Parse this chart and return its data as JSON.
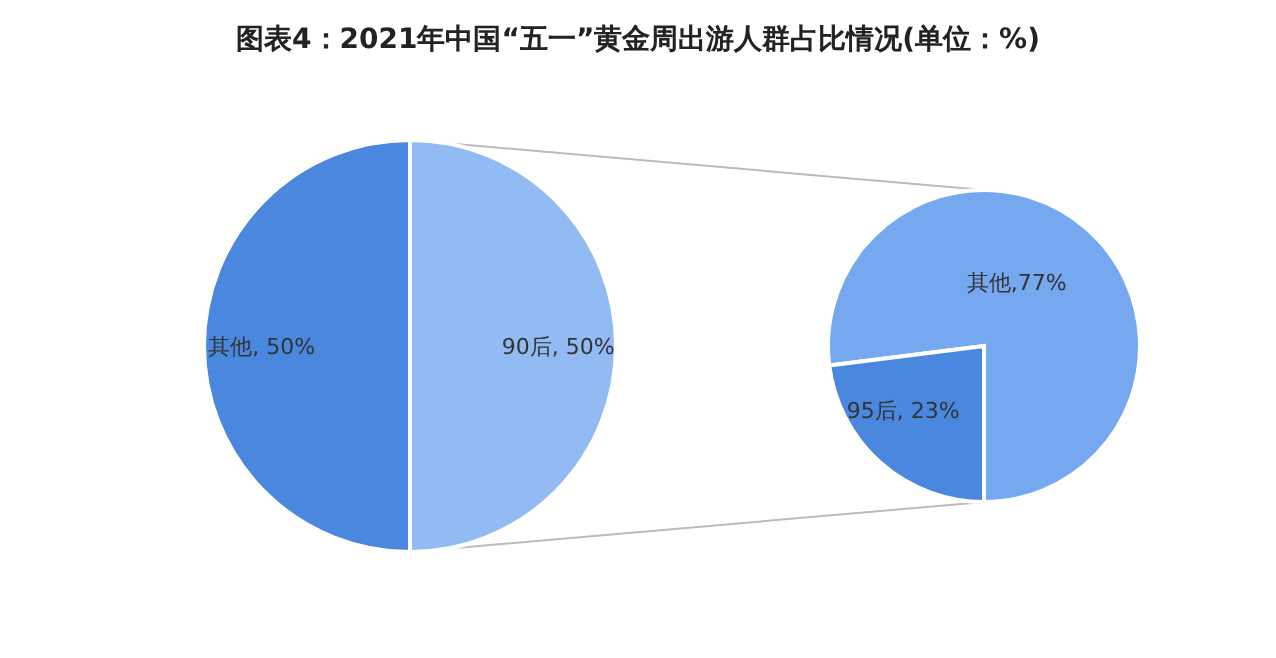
{
  "chart_data": [
    {
      "type": "pie",
      "title": "图表4：2021年中国“五一”黄金周出游人群占比情况(单位：%)",
      "categories": [
        "其他",
        "90后"
      ],
      "values": [
        50,
        50
      ],
      "colors": [
        "#4a88e0",
        "#92bbf3"
      ],
      "value_labels": [
        ", 50%",
        ", 50%"
      ]
    },
    {
      "type": "pie",
      "categories": [
        "其他",
        "95后"
      ],
      "values": [
        77,
        23
      ],
      "colors": [
        "#76a8ef",
        "#4a88e0"
      ],
      "value_labels": [
        ",77%",
        ", 23%"
      ]
    }
  ]
}
